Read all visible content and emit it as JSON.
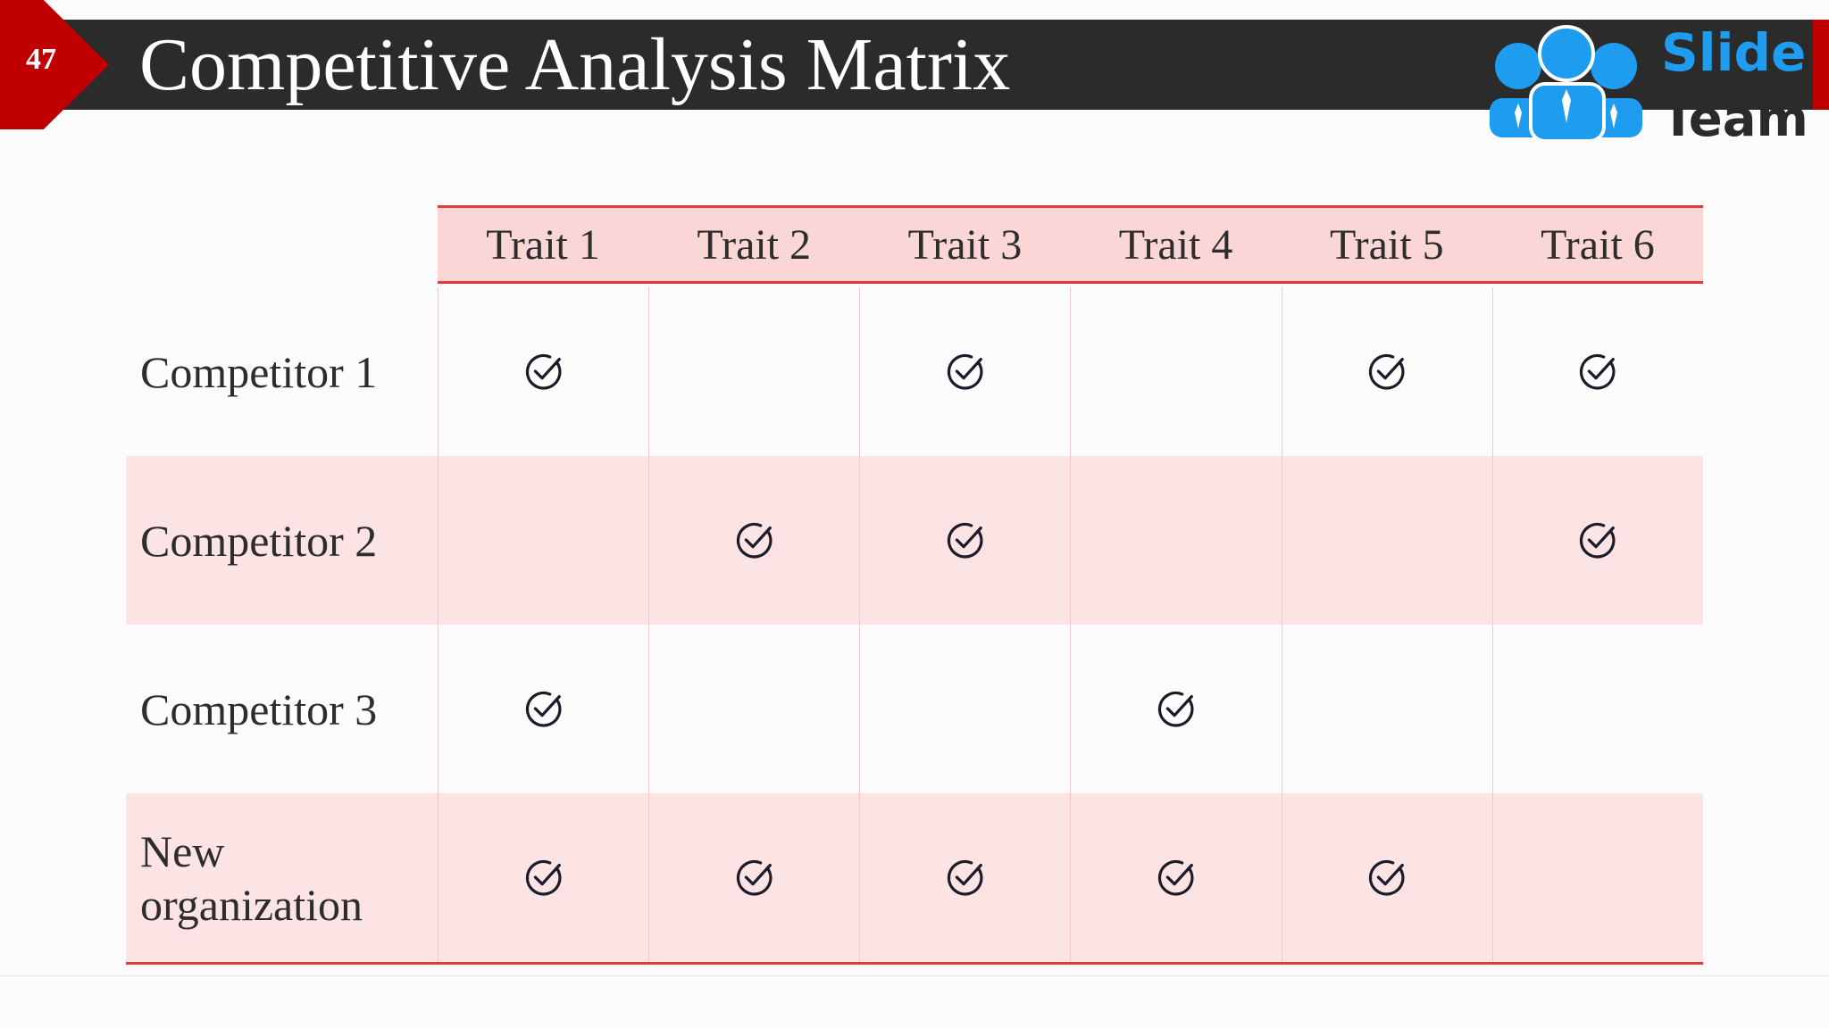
{
  "slide": {
    "number": "47",
    "title": "Competitive Analysis Matrix"
  },
  "logo": {
    "word1": "Slide",
    "word2": "Team"
  },
  "colors": {
    "accent_red": "#c00000",
    "header_dark": "#2b2b2b",
    "header_pink": "#fbd6d6",
    "row_pink": "#fde4e4",
    "logo_blue": "#1e9cf0"
  },
  "matrix": {
    "traits": [
      "Trait 1",
      "Trait 2",
      "Trait 3",
      "Trait 4",
      "Trait 5",
      "Trait 6"
    ],
    "check_icon": "circle-check-icon",
    "rows": [
      {
        "label": "Competitor 1",
        "checks": [
          true,
          false,
          true,
          false,
          true,
          true
        ]
      },
      {
        "label": "Competitor 2",
        "checks": [
          false,
          true,
          true,
          false,
          false,
          true
        ]
      },
      {
        "label": "Competitor 3",
        "checks": [
          true,
          false,
          false,
          true,
          false,
          false
        ]
      },
      {
        "label": "New organization",
        "checks": [
          true,
          true,
          true,
          true,
          true,
          false
        ]
      }
    ]
  }
}
